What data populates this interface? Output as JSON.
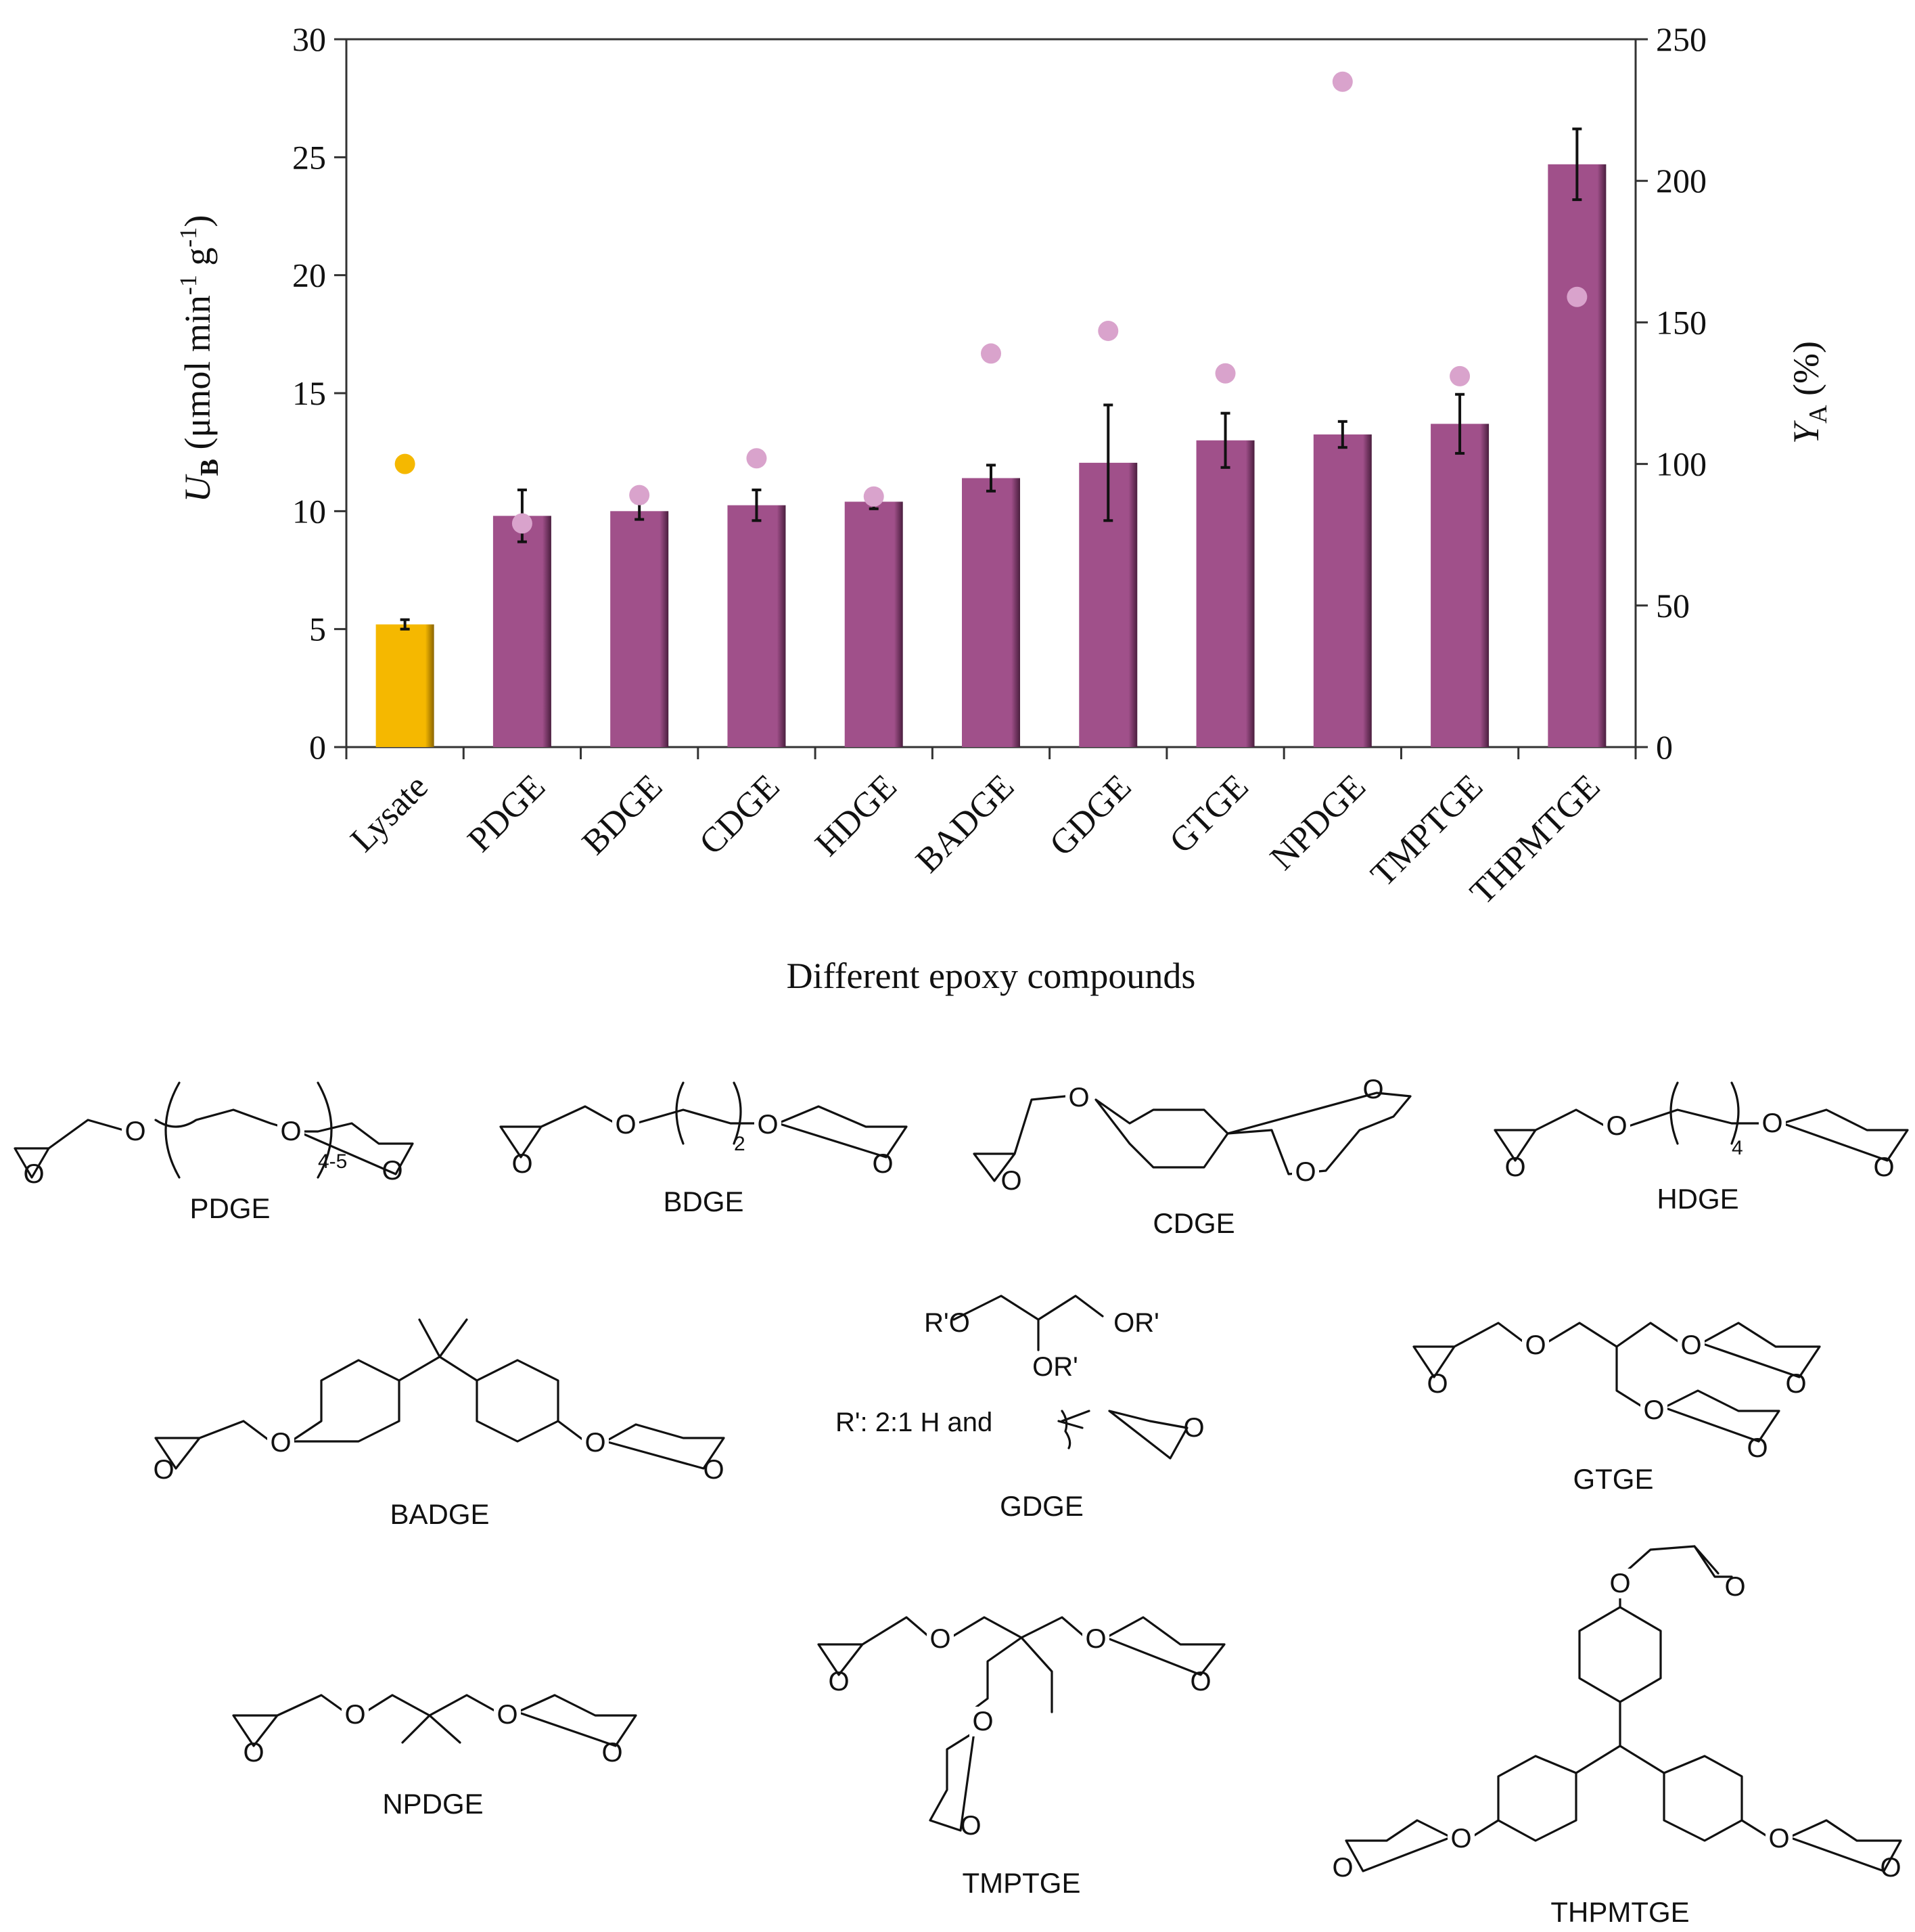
{
  "chart_data": {
    "type": "bar",
    "categories": [
      "Lysate",
      "PDGE",
      "BDGE",
      "CDGE",
      "HDGE",
      "BADGE",
      "GDGE",
      "GTGE",
      "NPDGE",
      "TMPTGE",
      "THPMTGE"
    ],
    "series": [
      {
        "name": "U_B",
        "axis": "left",
        "type": "bar",
        "values": [
          5.2,
          9.8,
          10.0,
          10.25,
          10.4,
          11.4,
          12.05,
          13.0,
          13.25,
          13.7,
          24.7
        ],
        "errors": [
          0.2,
          1.1,
          0.35,
          0.65,
          0.3,
          0.55,
          2.45,
          1.15,
          0.55,
          1.25,
          1.5
        ],
        "colors": [
          "#F5B800",
          "#A0508A",
          "#A0508A",
          "#A0508A",
          "#A0508A",
          "#A0508A",
          "#A0508A",
          "#A0508A",
          "#A0508A",
          "#A0508A",
          "#A0508A"
        ]
      },
      {
        "name": "Y_A",
        "axis": "right",
        "type": "scatter",
        "values": [
          100,
          79,
          89,
          102,
          88.5,
          139,
          147,
          132,
          235,
          131,
          159
        ],
        "colors": [
          "#F5B800",
          "#D9A3CC",
          "#D9A3CC",
          "#D9A3CC",
          "#D9A3CC",
          "#D9A3CC",
          "#D9A3CC",
          "#D9A3CC",
          "#D9A3CC",
          "#D9A3CC",
          "#D9A3CC"
        ]
      }
    ],
    "ylim": [
      0,
      30
    ],
    "yticks": [
      0,
      5,
      10,
      15,
      20,
      25,
      30
    ],
    "y2lim": [
      0,
      250
    ],
    "y2ticks": [
      0,
      50,
      100,
      150,
      200,
      250
    ],
    "xlabel": "Different epoxy compounds",
    "ylabel": {
      "symbol": "U",
      "sub": "B",
      "text": " (μmol min",
      "sup1": "-1",
      "text2": " g",
      "sup2": "-1",
      "end": ")"
    },
    "y2label": {
      "symbol": "Y",
      "sub": "A",
      "text": " (%)"
    }
  },
  "structures": {
    "PDGE": {
      "name": "PDGE",
      "repeat": "4-5",
      "atoms": [
        "O",
        "O",
        "O",
        "O"
      ]
    },
    "BDGE": {
      "name": "BDGE",
      "repeat": "2",
      "atoms": [
        "O",
        "O",
        "O",
        "O"
      ]
    },
    "CDGE": {
      "name": "CDGE",
      "atoms": [
        "O",
        "O",
        "O",
        "O"
      ]
    },
    "HDGE": {
      "name": "HDGE",
      "repeat": "4",
      "atoms": [
        "O",
        "O",
        "O",
        "O"
      ]
    },
    "BADGE": {
      "name": "BADGE",
      "atoms": [
        "O",
        "O",
        "O",
        "O"
      ]
    },
    "GDGE": {
      "name": "GDGE",
      "r1": "R'O",
      "r2": "OR'",
      "r3": "OR'",
      "note": "R': 2:1  H  and",
      "atom": "O"
    },
    "GTGE": {
      "name": "GTGE",
      "atoms": [
        "O",
        "O",
        "O",
        "O",
        "O",
        "O"
      ]
    },
    "NPDGE": {
      "name": "NPDGE",
      "atoms": [
        "O",
        "O",
        "O",
        "O"
      ]
    },
    "TMPTGE": {
      "name": "TMPTGE",
      "atoms": [
        "O",
        "O",
        "O",
        "O",
        "O",
        "O"
      ]
    },
    "THPMTGE": {
      "name": "THPMTGE",
      "atoms": [
        "O",
        "O",
        "O",
        "O",
        "O",
        "O"
      ]
    }
  }
}
